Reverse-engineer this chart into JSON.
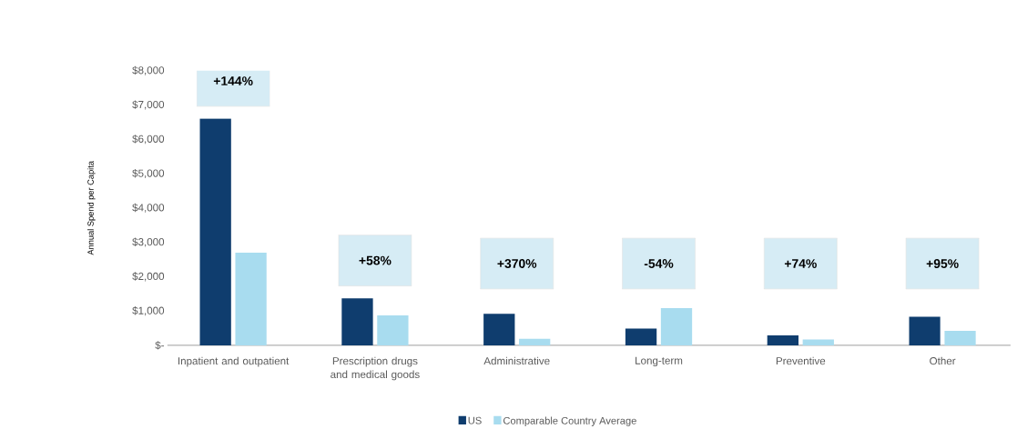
{
  "chart_data": {
    "type": "bar",
    "ylabel": "Annual Spend per Capita",
    "categories": [
      "Inpatient and outpatient",
      "Prescription drugs and medical goods",
      "Administrative",
      "Long-term",
      "Preventive",
      "Other"
    ],
    "series": [
      {
        "name": "US",
        "color": "#0f3d6e",
        "values": [
          6600,
          1370,
          920,
          490,
          290,
          830
        ]
      },
      {
        "name": "Comparable Country Average",
        "color": "#a8dcef",
        "values": [
          2700,
          870,
          190,
          1080,
          170,
          420
        ]
      }
    ],
    "ylim": [
      0,
      8000
    ],
    "yticks": [
      {
        "value": 0,
        "label": "$-"
      },
      {
        "value": 1000,
        "label": "$1,000"
      },
      {
        "value": 2000,
        "label": "$2,000"
      },
      {
        "value": 3000,
        "label": "$3,000"
      },
      {
        "value": 4000,
        "label": "$4,000"
      },
      {
        "value": 5000,
        "label": "$5,000"
      },
      {
        "value": 6000,
        "label": "$6,000"
      },
      {
        "value": 7000,
        "label": "$7,000"
      },
      {
        "value": 8000,
        "label": "$8,000"
      }
    ],
    "annotations": [
      "+144%",
      "+58%",
      "+370%",
      "-54%",
      "+74%",
      "+95%"
    ],
    "legend": "bottom"
  }
}
